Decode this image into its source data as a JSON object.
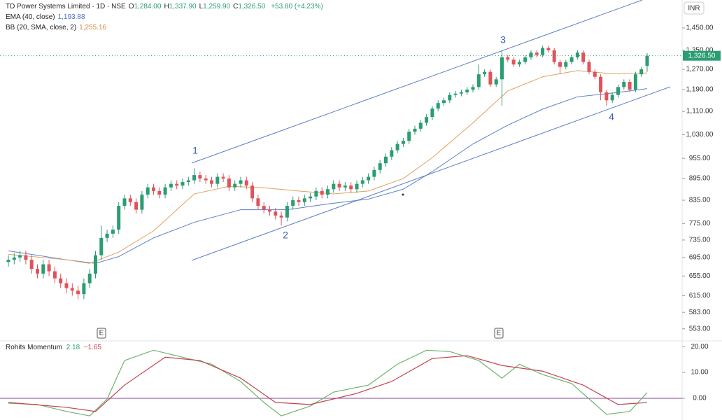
{
  "header": {
    "symbol": "TD Power Systems Limited · 1D · NSE",
    "fields": [
      {
        "key": "O",
        "value": "1,284.00"
      },
      {
        "key": "H",
        "value": "1,337.90"
      },
      {
        "key": "L",
        "value": "1,259.90"
      },
      {
        "key": "C",
        "value": "1,326.50"
      }
    ],
    "change": "+53.80 (+4.23%)",
    "currency": "INR"
  },
  "chart_data": [
    {
      "type": "candlestick",
      "log_scale": true,
      "grid": false,
      "up_color": "#2a9d72",
      "down_color": "#e0535a",
      "open": [
        685,
        690,
        695,
        700,
        690,
        670,
        660,
        680,
        665,
        650,
        640,
        630,
        625,
        618,
        640,
        660,
        700,
        740,
        750,
        760,
        820,
        840,
        830,
        810,
        850,
        870,
        860,
        850,
        870,
        880,
        875,
        885,
        890,
        905,
        895,
        890,
        880,
        900,
        895,
        870,
        880,
        890,
        875,
        840,
        820,
        810,
        805,
        795,
        790,
        820,
        835,
        830,
        840,
        845,
        860,
        850,
        865,
        880,
        870,
        875,
        865,
        880,
        890,
        900,
        920,
        940,
        960,
        980,
        1000,
        1010,
        1040,
        1050,
        1070,
        1090,
        1120,
        1140,
        1150,
        1170,
        1175,
        1180,
        1190,
        1200,
        1250,
        1260,
        1210,
        1230,
        1320,
        1310,
        1290,
        1300,
        1320,
        1340,
        1330,
        1360,
        1350,
        1300,
        1280,
        1300,
        1320,
        1340,
        1300,
        1260,
        1240,
        1180,
        1150,
        1170,
        1200,
        1220,
        1190,
        1250,
        1284
      ],
      "high": [
        700,
        705,
        710,
        710,
        700,
        680,
        690,
        690,
        675,
        660,
        650,
        640,
        635,
        650,
        670,
        710,
        770,
        760,
        770,
        830,
        850,
        850,
        840,
        860,
        880,
        880,
        870,
        880,
        890,
        890,
        895,
        900,
        925,
        915,
        905,
        900,
        910,
        910,
        905,
        890,
        900,
        900,
        885,
        850,
        830,
        820,
        815,
        805,
        830,
        845,
        845,
        850,
        855,
        870,
        870,
        875,
        890,
        890,
        885,
        885,
        890,
        900,
        910,
        930,
        950,
        970,
        990,
        1010,
        1020,
        1050,
        1060,
        1080,
        1100,
        1130,
        1150,
        1160,
        1180,
        1185,
        1190,
        1200,
        1210,
        1290,
        1270,
        1270,
        1240,
        1350,
        1330,
        1320,
        1310,
        1330,
        1350,
        1350,
        1370,
        1370,
        1360,
        1310,
        1310,
        1330,
        1350,
        1350,
        1310,
        1270,
        1250,
        1190,
        1180,
        1210,
        1230,
        1230,
        1260,
        1280,
        1337.9
      ],
      "low": [
        675,
        680,
        685,
        680,
        660,
        650,
        650,
        655,
        640,
        630,
        620,
        615,
        608,
        608,
        630,
        650,
        690,
        730,
        740,
        750,
        810,
        820,
        800,
        800,
        840,
        850,
        840,
        840,
        860,
        865,
        865,
        875,
        880,
        885,
        880,
        870,
        870,
        885,
        860,
        860,
        870,
        865,
        830,
        810,
        800,
        795,
        785,
        770,
        780,
        810,
        820,
        820,
        830,
        835,
        840,
        840,
        855,
        860,
        860,
        855,
        855,
        870,
        880,
        890,
        910,
        930,
        950,
        970,
        990,
        1000,
        1030,
        1040,
        1060,
        1080,
        1110,
        1130,
        1140,
        1160,
        1165,
        1170,
        1180,
        1190,
        1240,
        1200,
        1200,
        1130,
        1300,
        1280,
        1280,
        1290,
        1310,
        1320,
        1320,
        1340,
        1290,
        1250,
        1270,
        1290,
        1310,
        1290,
        1250,
        1230,
        1150,
        1130,
        1140,
        1160,
        1190,
        1180,
        1180,
        1240,
        1259.9
      ],
      "close": [
        690,
        695,
        700,
        690,
        670,
        660,
        680,
        665,
        650,
        640,
        630,
        625,
        618,
        640,
        660,
        700,
        740,
        750,
        760,
        820,
        840,
        830,
        810,
        850,
        870,
        860,
        850,
        870,
        880,
        875,
        885,
        890,
        905,
        895,
        890,
        880,
        900,
        895,
        870,
        880,
        890,
        875,
        840,
        820,
        810,
        805,
        795,
        790,
        820,
        835,
        830,
        840,
        845,
        860,
        850,
        865,
        880,
        870,
        875,
        865,
        880,
        890,
        900,
        920,
        940,
        960,
        980,
        1000,
        1010,
        1040,
        1050,
        1070,
        1090,
        1120,
        1140,
        1150,
        1170,
        1175,
        1180,
        1190,
        1200,
        1250,
        1260,
        1210,
        1230,
        1320,
        1310,
        1290,
        1300,
        1320,
        1340,
        1330,
        1360,
        1350,
        1300,
        1280,
        1300,
        1320,
        1340,
        1300,
        1260,
        1240,
        1180,
        1150,
        1170,
        1200,
        1220,
        1190,
        1250,
        1270,
        1326.5
      ],
      "last_price_label": "1,326.50",
      "lines": [
        {
          "name": "EMA (40, close)",
          "legend_value": "1,193.88",
          "color": "#5b7fc7",
          "x": [
            0,
            10,
            15,
            19,
            25,
            32,
            40,
            48,
            55,
            62,
            68,
            73,
            80,
            86,
            92,
            98,
            104,
            110
          ],
          "values": [
            710,
            690,
            682,
            697,
            740,
            778,
            810,
            810,
            825,
            838,
            865,
            915,
            1000,
            1062,
            1118,
            1163,
            1177,
            1193.88
          ]
        },
        {
          "name": "BB (20, SMA, close, 2)",
          "legend_value": "1,255.16",
          "color": "#e0a060",
          "x": [
            0,
            10,
            14,
            19,
            25,
            32,
            38,
            44,
            50,
            56,
            62,
            68,
            73,
            80,
            86,
            92,
            98,
            104,
            110
          ],
          "values": [
            702,
            690,
            682,
            707,
            757,
            852,
            873,
            869,
            860,
            852,
            860,
            895,
            957,
            1070,
            1185,
            1240,
            1265,
            1252,
            1255.16
          ]
        }
      ],
      "ylim": [
        532,
        1586
      ],
      "yticks": [
        {
          "value": 1450,
          "label": "1,450.00"
        },
        {
          "value": 1350,
          "label": "1,350.00"
        },
        {
          "value": 1270,
          "label": "1,270.00"
        },
        {
          "value": 1190,
          "label": "1,190.00"
        },
        {
          "value": 1110,
          "label": "1,110.00"
        },
        {
          "value": 1030,
          "label": "1,030.00"
        },
        {
          "value": 955,
          "label": "955.00"
        },
        {
          "value": 895,
          "label": "895.00"
        },
        {
          "value": 835,
          "label": "835.00"
        },
        {
          "value": 775,
          "label": "775.00"
        },
        {
          "value": 735,
          "label": "735.00"
        },
        {
          "value": 695,
          "label": "695.00"
        },
        {
          "value": 655,
          "label": "655.00"
        },
        {
          "value": 615,
          "label": "615.00"
        },
        {
          "value": 583,
          "label": "583.00"
        },
        {
          "value": 553,
          "label": "553.00"
        }
      ],
      "annotations": [
        "1",
        "2",
        "3",
        "4"
      ],
      "events": [
        "E",
        "E"
      ]
    },
    {
      "type": "line",
      "title": "Rohits Momentum",
      "grid": false,
      "zero_color": "#8a4a9a",
      "series": [
        {
          "legend_value": "2.18",
          "color": "#6fb36f",
          "x": [
            0,
            5,
            10,
            14,
            17,
            20,
            25,
            30,
            35,
            40,
            44,
            47,
            52,
            56,
            62,
            67,
            72,
            76,
            81,
            85,
            88,
            92,
            97,
            103,
            107,
            110
          ],
          "values": [
            -1.9,
            -2.4,
            -5.1,
            -6.8,
            -0.3,
            14.6,
            18.6,
            15.9,
            13.2,
            6.5,
            -1.6,
            -6.8,
            -3,
            2.4,
            5.1,
            13.2,
            18.6,
            18.1,
            14.6,
            7.8,
            13.2,
            9.2,
            5.7,
            -6.2,
            -5.1,
            2.18
          ]
        },
        {
          "legend_value": "−1.65",
          "color": "#c2444f",
          "x": [
            0,
            10,
            15,
            20,
            27,
            33,
            40,
            46,
            52,
            60,
            66,
            73,
            79,
            85,
            92,
            99,
            105,
            110
          ],
          "values": [
            -1.6,
            -3.5,
            -5.1,
            5.1,
            15.9,
            14.6,
            7.8,
            -1.6,
            -2.4,
            1.9,
            6.5,
            15.4,
            16.5,
            12.7,
            10.5,
            5.1,
            -2.4,
            -1.65
          ]
        }
      ],
      "ylim": [
        -8.4,
        21.4
      ],
      "yticks": [
        {
          "value": 20,
          "label": "20.00"
        },
        {
          "value": 10,
          "label": "10.00"
        },
        {
          "value": 0,
          "label": "0.00"
        }
      ]
    }
  ]
}
